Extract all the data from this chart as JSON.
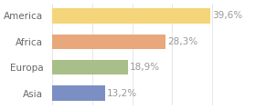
{
  "categories": [
    "America",
    "Africa",
    "Europa",
    "Asia"
  ],
  "values": [
    39.6,
    28.3,
    18.9,
    13.2
  ],
  "labels": [
    "39,6%",
    "28,3%",
    "18,9%",
    "13,2%"
  ],
  "bar_colors": [
    "#f5d57a",
    "#e8a87c",
    "#a8bf8a",
    "#7b8fc4"
  ],
  "background_color": "#ffffff",
  "xlim": [
    0,
    50
  ],
  "bar_height": 0.58,
  "label_fontsize": 7.5,
  "category_fontsize": 7.5,
  "label_color": "#999999",
  "tick_color": "#666666",
  "grid_color": "#dddddd",
  "grid_ticks": [
    0,
    10,
    20,
    30,
    40,
    50
  ]
}
